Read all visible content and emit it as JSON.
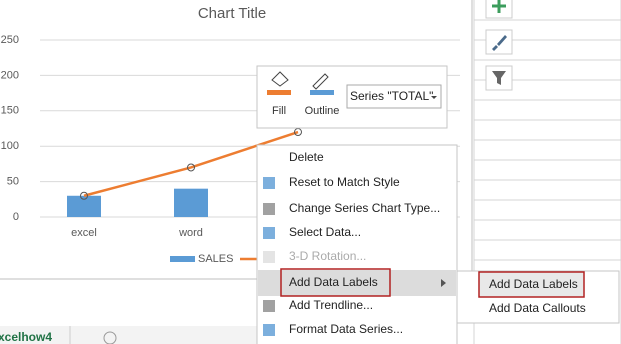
{
  "chart_data": {
    "type": "bar",
    "title": "Chart Title",
    "categories": [
      "excel",
      "word",
      null
    ],
    "series": [
      {
        "name": "SALES",
        "type": "bar",
        "color": "#5b9bd5",
        "values": [
          30,
          40,
          null
        ]
      },
      {
        "name": "TOTAL",
        "type": "line",
        "color": "#ed7d31",
        "values": [
          30,
          70,
          120
        ]
      }
    ],
    "ylim": [
      0,
      250
    ],
    "yticks": [
      0,
      50,
      100,
      150,
      200,
      250
    ],
    "grid": true
  },
  "mini_toolbar": {
    "fill": "Fill",
    "outline": "Outline",
    "series_select": "Series \"TOTAL\""
  },
  "context_menu": {
    "items": [
      "Delete",
      "Reset to Match Style",
      "Change Series Chart Type...",
      "Select Data...",
      "3-D Rotation...",
      "Add Data Labels",
      "Add Trendline...",
      "Format Data Series..."
    ]
  },
  "submenu": {
    "items": [
      "Add Data Labels",
      "Add Data Callouts"
    ]
  },
  "sheet_tab": "xcelhow4"
}
